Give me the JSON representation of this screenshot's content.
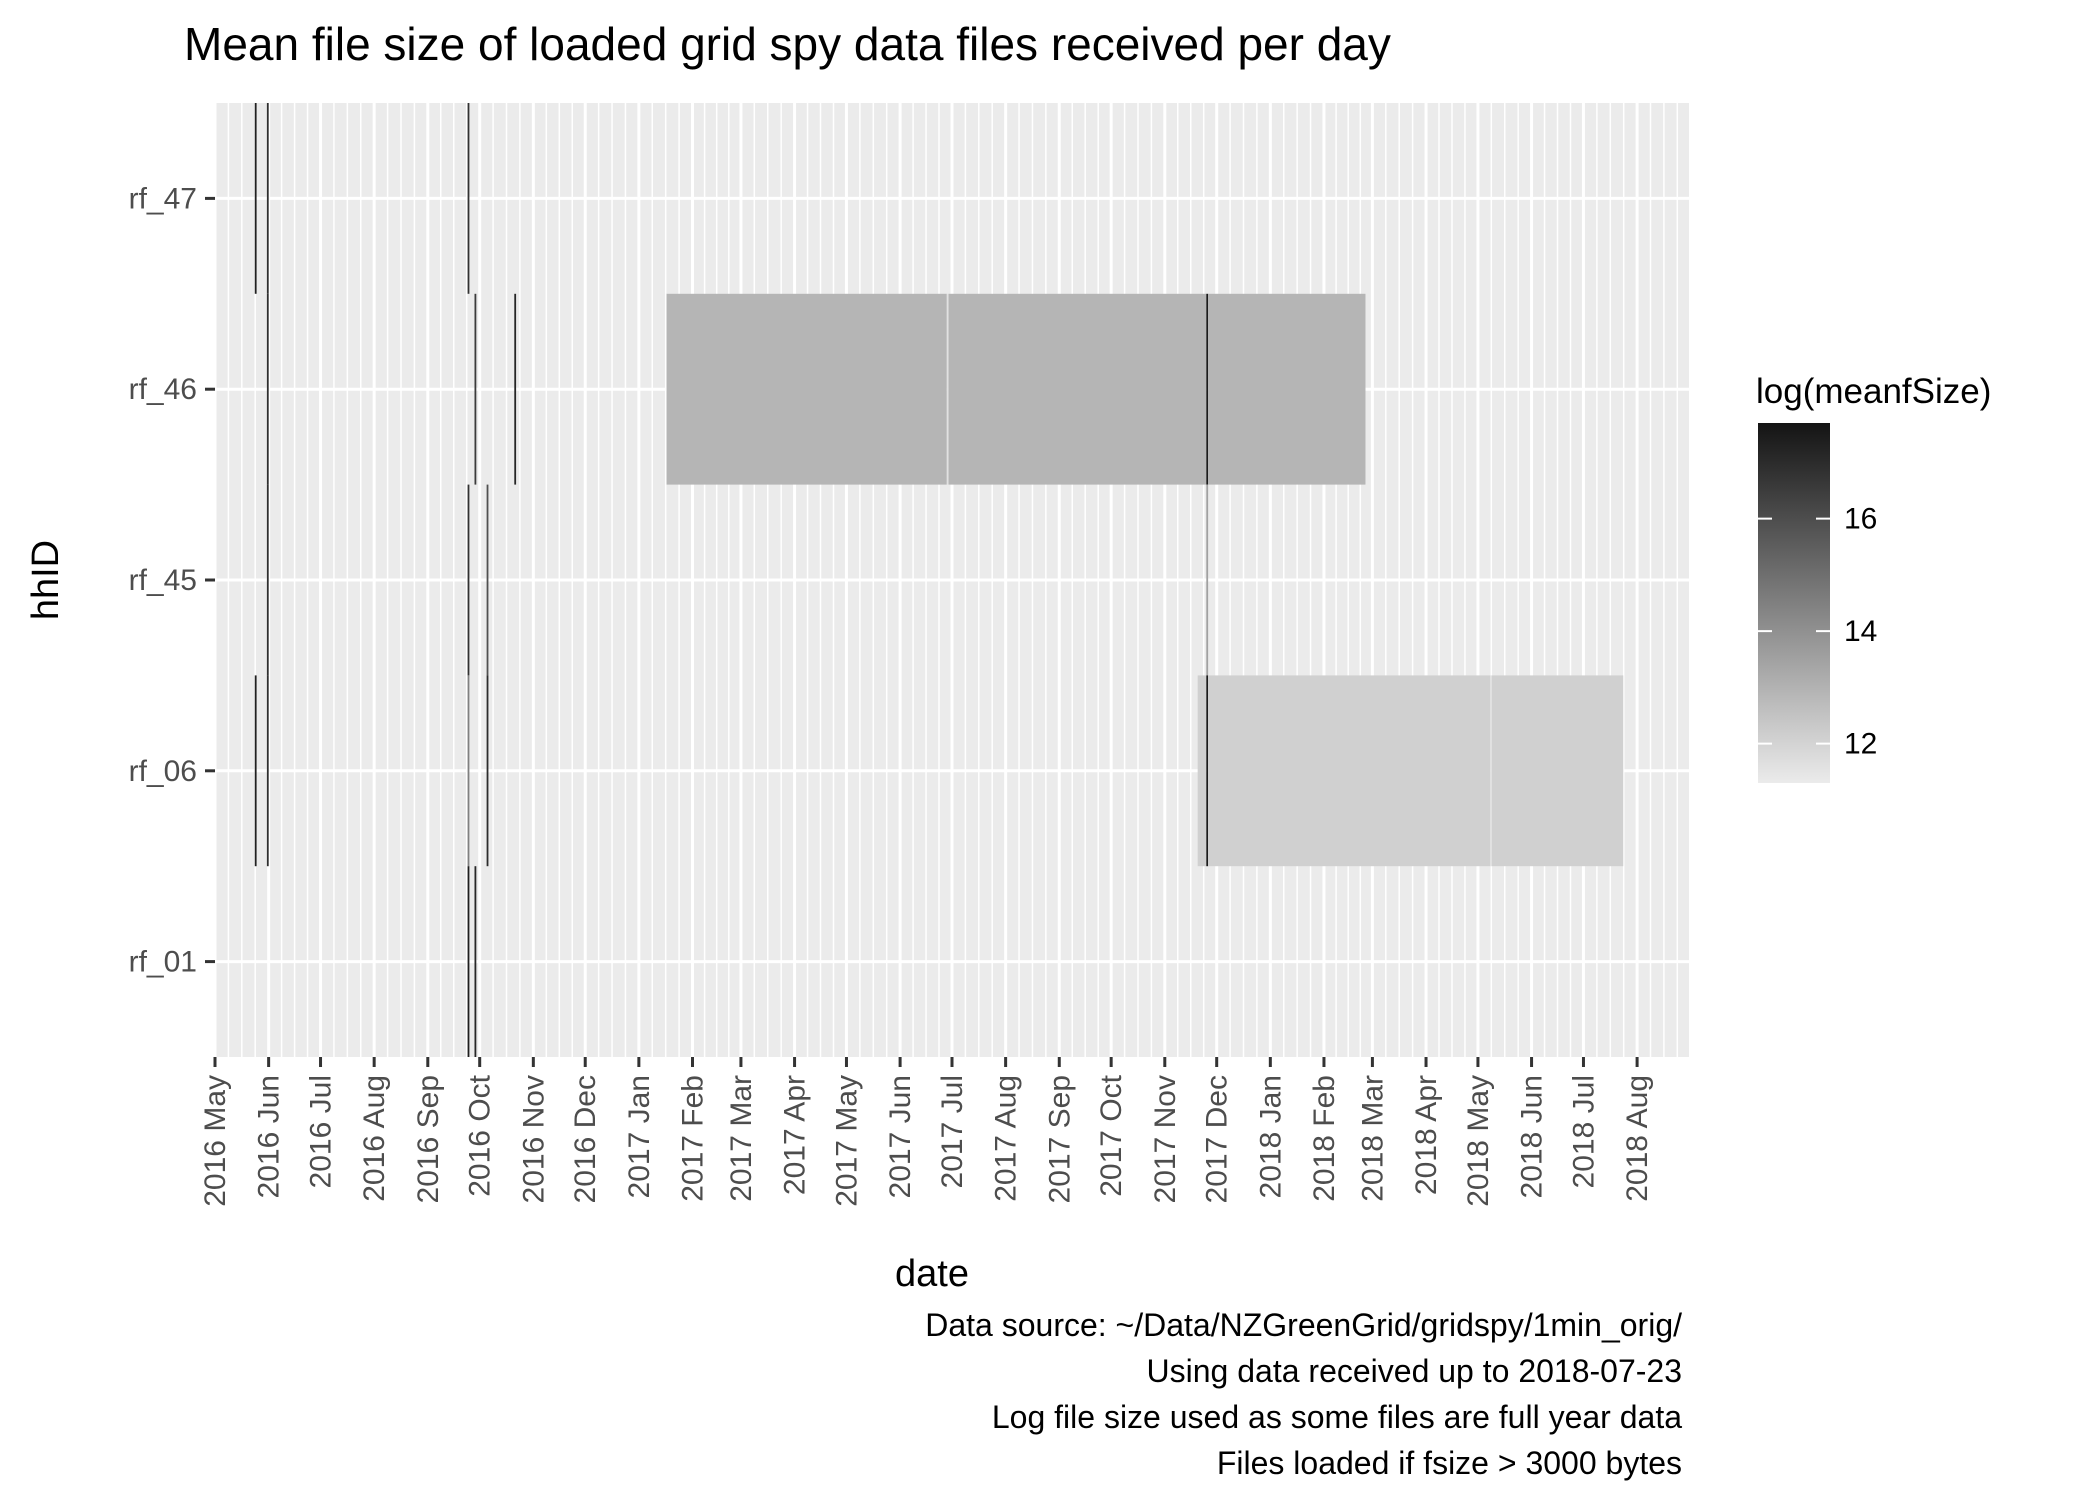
{
  "chart_data": {
    "type": "heatmap",
    "title": "Mean file size of loaded grid spy data files received per day",
    "xlabel": "date",
    "ylabel": "hhID",
    "x_axis": {
      "kind": "date",
      "range": [
        "2016-05-01",
        "2018-08-31"
      ],
      "tick_labels": [
        {
          "date": "2016-05-01",
          "label": "2016 May"
        },
        {
          "date": "2016-06-01",
          "label": "2016 Jun"
        },
        {
          "date": "2016-07-01",
          "label": "2016 Jul"
        },
        {
          "date": "2016-08-01",
          "label": "2016 Aug"
        },
        {
          "date": "2016-09-01",
          "label": "2016 Sep"
        },
        {
          "date": "2016-10-01",
          "label": "2016 Oct"
        },
        {
          "date": "2016-11-01",
          "label": "2016 Nov"
        },
        {
          "date": "2016-12-01",
          "label": "2016 Dec"
        },
        {
          "date": "2017-01-01",
          "label": "2017 Jan"
        },
        {
          "date": "2017-02-01",
          "label": "2017 Feb"
        },
        {
          "date": "2017-03-01",
          "label": "2017 Mar"
        },
        {
          "date": "2017-04-01",
          "label": "2017 Apr"
        },
        {
          "date": "2017-05-01",
          "label": "2017 May"
        },
        {
          "date": "2017-06-01",
          "label": "2017 Jun"
        },
        {
          "date": "2017-07-01",
          "label": "2017 Jul"
        },
        {
          "date": "2017-08-01",
          "label": "2017 Aug"
        },
        {
          "date": "2017-09-01",
          "label": "2017 Sep"
        },
        {
          "date": "2017-10-01",
          "label": "2017 Oct"
        },
        {
          "date": "2017-11-01",
          "label": "2017 Nov"
        },
        {
          "date": "2017-12-01",
          "label": "2017 Dec"
        },
        {
          "date": "2018-01-01",
          "label": "2018 Jan"
        },
        {
          "date": "2018-02-01",
          "label": "2018 Feb"
        },
        {
          "date": "2018-03-01",
          "label": "2018 Mar"
        },
        {
          "date": "2018-04-01",
          "label": "2018 Apr"
        },
        {
          "date": "2018-05-01",
          "label": "2018 May"
        },
        {
          "date": "2018-06-01",
          "label": "2018 Jun"
        },
        {
          "date": "2018-07-01",
          "label": "2018 Jul"
        },
        {
          "date": "2018-08-01",
          "label": "2018 Aug"
        }
      ]
    },
    "y_categories": [
      "rf_01",
      "rf_06",
      "rf_45",
      "rf_46",
      "rf_47"
    ],
    "tiles": [
      {
        "hhID": "rf_47",
        "start": "2016-05-24",
        "end": "2016-05-24",
        "value": 17.3
      },
      {
        "hhID": "rf_47",
        "start": "2016-05-31",
        "end": "2016-05-31",
        "value": 16.9
      },
      {
        "hhID": "rf_47",
        "start": "2016-09-24",
        "end": "2016-09-24",
        "value": 16.8
      },
      {
        "hhID": "rf_46",
        "start": "2016-05-31",
        "end": "2016-05-31",
        "value": 16.9
      },
      {
        "hhID": "rf_46",
        "start": "2016-09-28",
        "end": "2016-09-28",
        "value": 16.5
      },
      {
        "hhID": "rf_46",
        "start": "2016-10-21",
        "end": "2016-10-21",
        "value": 17.2
      },
      {
        "hhID": "rf_46",
        "start": "2017-01-17",
        "end": "2017-06-27",
        "value": 12.9
      },
      {
        "hhID": "rf_46",
        "start": "2017-06-28",
        "end": "2017-06-28",
        "value": 11.6
      },
      {
        "hhID": "rf_46",
        "start": "2017-06-29",
        "end": "2017-11-24",
        "value": 12.9
      },
      {
        "hhID": "rf_46",
        "start": "2017-11-25",
        "end": "2017-11-25",
        "value": 17.5
      },
      {
        "hhID": "rf_46",
        "start": "2017-11-26",
        "end": "2018-02-24",
        "value": 12.9
      },
      {
        "hhID": "rf_45",
        "start": "2016-05-31",
        "end": "2016-05-31",
        "value": 16.9
      },
      {
        "hhID": "rf_45",
        "start": "2016-09-24",
        "end": "2016-09-24",
        "value": 16.8
      },
      {
        "hhID": "rf_45",
        "start": "2016-10-05",
        "end": "2016-10-05",
        "value": 15.9
      },
      {
        "hhID": "rf_45",
        "start": "2017-11-25",
        "end": "2017-11-25",
        "value": 13.5
      },
      {
        "hhID": "rf_06",
        "start": "2016-05-24",
        "end": "2016-05-24",
        "value": 17.3
      },
      {
        "hhID": "rf_06",
        "start": "2016-05-31",
        "end": "2016-05-31",
        "value": 16.9
      },
      {
        "hhID": "rf_06",
        "start": "2016-09-24",
        "end": "2016-09-24",
        "value": 14.5
      },
      {
        "hhID": "rf_06",
        "start": "2016-10-05",
        "end": "2016-10-05",
        "value": 17.0
      },
      {
        "hhID": "rf_06",
        "start": "2017-11-20",
        "end": "2017-11-24",
        "value": 12.1
      },
      {
        "hhID": "rf_06",
        "start": "2017-11-25",
        "end": "2017-11-25",
        "value": 17.5
      },
      {
        "hhID": "rf_06",
        "start": "2017-11-26",
        "end": "2018-05-07",
        "value": 12.1
      },
      {
        "hhID": "rf_06",
        "start": "2018-05-08",
        "end": "2018-05-08",
        "value": 11.6
      },
      {
        "hhID": "rf_06",
        "start": "2018-05-09",
        "end": "2018-07-23",
        "value": 12.1
      },
      {
        "hhID": "rf_01",
        "start": "2016-09-24",
        "end": "2016-09-24",
        "value": 17.4
      },
      {
        "hhID": "rf_01",
        "start": "2016-09-28",
        "end": "2016-09-28",
        "value": 17.1
      }
    ],
    "grid": true,
    "legend": {
      "title": "log(meanfSize)",
      "position": "right",
      "range": [
        11.3,
        17.7
      ],
      "ticks": [
        12,
        14,
        16
      ],
      "colors": {
        "low": "#ebebeb",
        "high": "#141414"
      }
    },
    "caption": [
      "Data source: ~/Data/NZGreenGrid/gridspy/1min_orig/",
      "Using data received up to 2018-07-23",
      "Log file size used as some files are full year data",
      "Files loaded if fsize > 3000 bytes"
    ]
  },
  "colors": {
    "panel_background": "#ebebeb",
    "grid_major": "#ffffff",
    "axis_ticks": "#333333"
  }
}
